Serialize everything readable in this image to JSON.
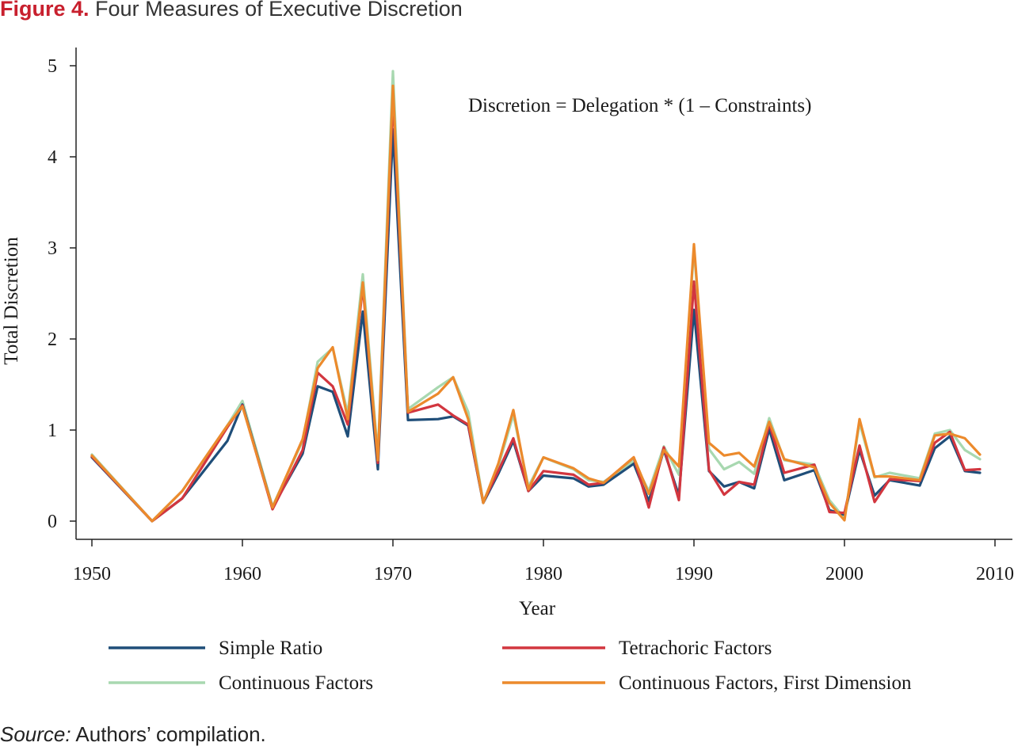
{
  "figure": {
    "label": "Figure 4.",
    "title": "Four Measures of Executive Discretion"
  },
  "source": {
    "label": "Source:",
    "text": "Authors’ compilation."
  },
  "colors": {
    "simple_ratio": "#1f4e79",
    "tetrachoric": "#d2363f",
    "continuous": "#a8d8b0",
    "continuous_first": "#ec8a2c"
  },
  "chart_data": {
    "type": "line",
    "title": "",
    "xlabel": "Year",
    "ylabel": "Total Discretion",
    "annotation": "Discretion = Delegation * (1 – Constraints)",
    "xlim": [
      1949,
      2011
    ],
    "ylim": [
      -0.2,
      5.2
    ],
    "xticks": [
      1950,
      1960,
      1970,
      1980,
      1990,
      2000,
      2010
    ],
    "yticks": [
      0,
      1,
      2,
      3,
      4,
      5
    ],
    "grid": false,
    "legend_position": "bottom",
    "x": [
      1950,
      1954,
      1956,
      1959,
      1960,
      1962,
      1964,
      1965,
      1966,
      1967,
      1968,
      1969,
      1970,
      1971,
      1973,
      1974,
      1975,
      1976,
      1977,
      1978,
      1979,
      1980,
      1982,
      1983,
      1984,
      1986,
      1987,
      1988,
      1989,
      1990,
      1991,
      1992,
      1993,
      1994,
      1995,
      1996,
      1998,
      1999,
      2000,
      2001,
      2002,
      2003,
      2005,
      2006,
      2007,
      2008,
      2009
    ],
    "series": [
      {
        "name": "Simple Ratio",
        "color": "#1f4e79",
        "values": [
          0.7,
          0.0,
          0.25,
          0.88,
          1.28,
          0.15,
          0.74,
          1.48,
          1.42,
          0.93,
          2.3,
          0.57,
          4.3,
          1.11,
          1.12,
          1.15,
          1.05,
          0.2,
          0.52,
          0.88,
          0.33,
          0.5,
          0.47,
          0.38,
          0.4,
          0.63,
          0.22,
          0.78,
          0.28,
          2.32,
          0.55,
          0.38,
          0.43,
          0.36,
          1.01,
          0.45,
          0.56,
          0.12,
          0.07,
          0.78,
          0.28,
          0.45,
          0.39,
          0.8,
          0.93,
          0.55,
          0.53
        ]
      },
      {
        "name": "Tetrachoric Factors",
        "color": "#d2363f",
        "values": [
          0.71,
          0.0,
          0.25,
          1.03,
          1.27,
          0.13,
          0.78,
          1.63,
          1.48,
          1.06,
          2.58,
          0.64,
          4.66,
          1.19,
          1.28,
          1.16,
          1.06,
          0.21,
          0.55,
          0.91,
          0.33,
          0.55,
          0.51,
          0.4,
          0.42,
          0.7,
          0.15,
          0.81,
          0.23,
          2.63,
          0.56,
          0.29,
          0.43,
          0.4,
          1.07,
          0.53,
          0.62,
          0.1,
          0.09,
          0.83,
          0.21,
          0.46,
          0.44,
          0.86,
          0.98,
          0.56,
          0.57
        ]
      },
      {
        "name": "Continuous Factors",
        "color": "#a8d8b0",
        "values": [
          0.73,
          0.0,
          0.33,
          1.05,
          1.32,
          0.16,
          0.88,
          1.75,
          1.9,
          1.18,
          2.71,
          0.72,
          4.94,
          1.23,
          1.47,
          1.58,
          1.2,
          0.21,
          0.6,
          1.17,
          0.38,
          0.7,
          0.57,
          0.45,
          0.43,
          0.66,
          0.33,
          0.82,
          0.51,
          3.0,
          0.79,
          0.57,
          0.65,
          0.52,
          1.13,
          0.67,
          0.62,
          0.23,
          0.03,
          1.08,
          0.48,
          0.53,
          0.47,
          0.96,
          1.0,
          0.78,
          0.68
        ]
      },
      {
        "name": "Continuous Factors, First Dimension",
        "color": "#ec8a2c",
        "values": [
          0.72,
          0.0,
          0.33,
          1.05,
          1.26,
          0.15,
          0.9,
          1.68,
          1.91,
          1.12,
          2.62,
          0.67,
          4.78,
          1.2,
          1.4,
          1.58,
          1.12,
          0.2,
          0.63,
          1.22,
          0.35,
          0.7,
          0.58,
          0.47,
          0.42,
          0.7,
          0.3,
          0.78,
          0.6,
          3.04,
          0.86,
          0.72,
          0.75,
          0.6,
          1.09,
          0.68,
          0.59,
          0.2,
          0.01,
          1.12,
          0.49,
          0.49,
          0.45,
          0.94,
          0.96,
          0.91,
          0.73
        ]
      }
    ]
  }
}
